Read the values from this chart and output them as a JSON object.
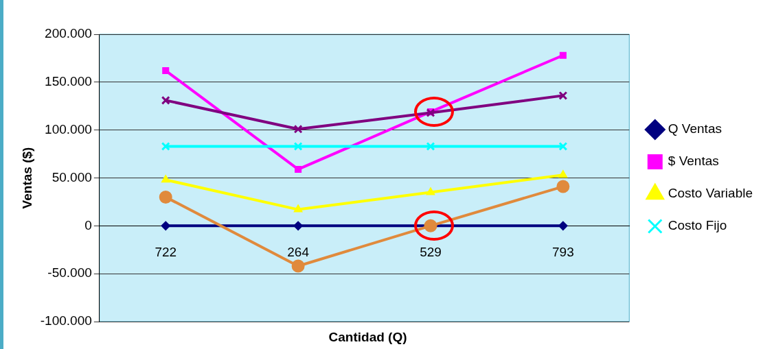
{
  "chart_data": {
    "type": "line",
    "xlabel": "Cantidad (Q)",
    "ylabel": "Ventas ($)",
    "categories": [
      "722",
      "264",
      "529",
      "793"
    ],
    "series": [
      {
        "name": "Q Ventas",
        "color": "#000080",
        "marker": "diamond",
        "values": [
          0,
          0,
          0,
          0
        ]
      },
      {
        "name": "$ Ventas",
        "color": "#ff00ff",
        "marker": "square",
        "values": [
          162000,
          59000,
          119000,
          178000
        ]
      },
      {
        "name": "Costo Variable",
        "color": "#ffff00",
        "marker": "triangle",
        "values": [
          48000,
          17000,
          35000,
          53000
        ]
      },
      {
        "name": "Costo Fijo",
        "color": "#00ffff",
        "marker": "cross",
        "values": [
          83000,
          83000,
          83000,
          83000
        ]
      },
      {
        "color": "#800080",
        "marker": "cross",
        "values": [
          131000,
          101000,
          118000,
          136000
        ]
      },
      {
        "color": "#e08a3c",
        "marker": "circle",
        "values": [
          30000,
          -42000,
          0,
          41000
        ]
      }
    ],
    "ylim": [
      -100000,
      200000
    ],
    "yticks": [
      {
        "value": -100000,
        "label": "-100.000"
      },
      {
        "value": -50000,
        "label": "-50.000"
      },
      {
        "value": 0,
        "label": "0"
      },
      {
        "value": 50000,
        "label": "50.000"
      },
      {
        "value": 100000,
        "label": "100.000"
      },
      {
        "value": 150000,
        "label": "150.000"
      },
      {
        "value": 200000,
        "label": "200.000"
      }
    ],
    "grid": "y",
    "legend": "right"
  }
}
